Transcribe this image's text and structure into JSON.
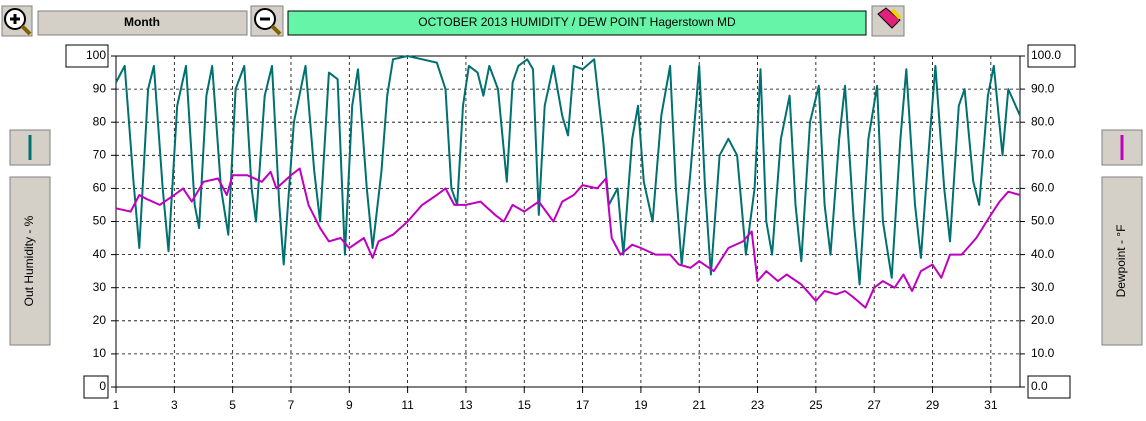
{
  "toolbar": {
    "range_button": "Month"
  },
  "chart_data": {
    "type": "line",
    "title": "OCTOBER  2013  HUMIDITY / DEW POINT  Hagerstown MD",
    "y_label": "Out Humidity - %",
    "y2_label": "Dewpoint - °F",
    "xlim": [
      1,
      32
    ],
    "xticks": [
      1,
      3,
      5,
      7,
      9,
      11,
      13,
      15,
      17,
      19,
      21,
      23,
      25,
      27,
      29,
      31
    ],
    "ylim": [
      0,
      100
    ],
    "yticks": [
      0,
      10,
      20,
      30,
      40,
      50,
      60,
      70,
      80,
      90,
      100
    ],
    "y2lim": [
      0,
      100
    ],
    "y2ticks": [
      {
        "value": 0,
        "label": "0.0"
      },
      {
        "value": 10,
        "label": "10.0"
      },
      {
        "value": 20,
        "label": "20.0"
      },
      {
        "value": 30,
        "label": "30.0"
      },
      {
        "value": 40,
        "label": "40.0"
      },
      {
        "value": 50,
        "label": "50.0"
      },
      {
        "value": 60,
        "label": "60.0"
      },
      {
        "value": 70,
        "label": "70.0"
      },
      {
        "value": 80,
        "label": "80.0"
      },
      {
        "value": 90,
        "label": "90.0"
      },
      {
        "value": 100,
        "label": "100.0"
      }
    ],
    "grid": true,
    "series": [
      {
        "color": "#007070",
        "x": [
          1.0,
          1.3,
          1.6,
          1.8,
          2.1,
          2.3,
          2.6,
          2.8,
          3.1,
          3.4,
          3.7,
          3.85,
          4.1,
          4.3,
          4.6,
          4.85,
          5.1,
          5.4,
          5.65,
          5.8,
          6.1,
          6.35,
          6.6,
          6.75,
          7.1,
          7.5,
          7.8,
          8.0,
          8.3,
          8.6,
          8.85,
          9.1,
          9.3,
          9.6,
          9.8,
          10.1,
          10.3,
          10.5,
          11.0,
          11.5,
          12.0,
          12.3,
          12.5,
          12.7,
          12.9,
          13.1,
          13.4,
          13.6,
          13.8,
          14.1,
          14.4,
          14.6,
          14.8,
          15.1,
          15.3,
          15.5,
          15.7,
          16.0,
          16.3,
          16.5,
          16.7,
          17.0,
          17.4,
          17.7,
          17.9,
          18.2,
          18.4,
          18.7,
          18.9,
          19.1,
          19.4,
          19.7,
          20.0,
          20.2,
          20.4,
          20.7,
          21.0,
          21.2,
          21.4,
          21.7,
          22.0,
          22.3,
          22.6,
          22.9,
          23.1,
          23.3,
          23.5,
          23.8,
          24.1,
          24.3,
          24.5,
          24.8,
          25.1,
          25.3,
          25.5,
          25.8,
          26.0,
          26.3,
          26.5,
          26.8,
          27.1,
          27.3,
          27.6,
          27.9,
          28.1,
          28.4,
          28.6,
          28.9,
          29.1,
          29.4,
          29.6,
          29.9,
          30.1,
          30.4,
          30.6,
          30.9,
          31.1,
          31.4,
          31.6,
          32.0
        ],
        "values": [
          92,
          97,
          62,
          42,
          90,
          97,
          60,
          41,
          85,
          97,
          55,
          48,
          88,
          97,
          60,
          46,
          90,
          97,
          60,
          50,
          88,
          97,
          55,
          37,
          80,
          97,
          65,
          50,
          95,
          93,
          40,
          85,
          96,
          60,
          42,
          65,
          88,
          99,
          100,
          99,
          98,
          90,
          60,
          55,
          85,
          97,
          95,
          88,
          97,
          90,
          62,
          92,
          97,
          99,
          96,
          52,
          85,
          97,
          82,
          76,
          97,
          96,
          99,
          75,
          55,
          60,
          40,
          75,
          85,
          62,
          50,
          82,
          97,
          60,
          37,
          65,
          97,
          60,
          34,
          70,
          75,
          70,
          40,
          60,
          96,
          50,
          40,
          75,
          88,
          55,
          38,
          80,
          91,
          55,
          40,
          75,
          91,
          50,
          31,
          75,
          91,
          50,
          33,
          75,
          96,
          55,
          39,
          75,
          97,
          60,
          44,
          85,
          90,
          62,
          55,
          88,
          97,
          70,
          90,
          82
        ]
      },
      {
        "color": "#c000c0",
        "axis": "y2",
        "x": [
          1.0,
          1.5,
          1.8,
          2.0,
          2.5,
          3.0,
          3.3,
          3.6,
          4.0,
          4.5,
          4.8,
          5.0,
          5.5,
          6.0,
          6.3,
          6.5,
          7.0,
          7.3,
          7.6,
          8.0,
          8.3,
          8.7,
          9.0,
          9.5,
          9.8,
          10.0,
          10.5,
          11.0,
          11.5,
          12.0,
          12.3,
          12.6,
          13.0,
          13.5,
          14.0,
          14.3,
          14.6,
          15.0,
          15.5,
          16.0,
          16.3,
          16.7,
          17.0,
          17.5,
          17.8,
          18.0,
          18.3,
          18.7,
          19.0,
          19.5,
          20.0,
          20.3,
          20.7,
          21.0,
          21.5,
          22.0,
          22.5,
          22.8,
          23.0,
          23.3,
          23.7,
          24.0,
          24.5,
          25.0,
          25.3,
          25.7,
          26.0,
          26.3,
          26.7,
          27.0,
          27.3,
          27.7,
          28.0,
          28.3,
          28.6,
          29.0,
          29.3,
          29.6,
          30.0,
          30.5,
          31.0,
          31.3,
          31.6,
          32.0
        ],
        "values": [
          54,
          53,
          58,
          57,
          55,
          58,
          60,
          56,
          62,
          63,
          58,
          64,
          64,
          62,
          65,
          60,
          64,
          66,
          55,
          48,
          44,
          45,
          42,
          45,
          39,
          44,
          46,
          50,
          55,
          58,
          60,
          55,
          55,
          56,
          52,
          50,
          55,
          53,
          56,
          50,
          56,
          58,
          61,
          60,
          63,
          45,
          40,
          43,
          42,
          40,
          40,
          37,
          36,
          38,
          35,
          42,
          44,
          47,
          32,
          35,
          32,
          34,
          31,
          26,
          29,
          28,
          29,
          27,
          24,
          30,
          32,
          30,
          34,
          29,
          35,
          37,
          33,
          40,
          40,
          45,
          52,
          56,
          59,
          58
        ]
      }
    ]
  }
}
